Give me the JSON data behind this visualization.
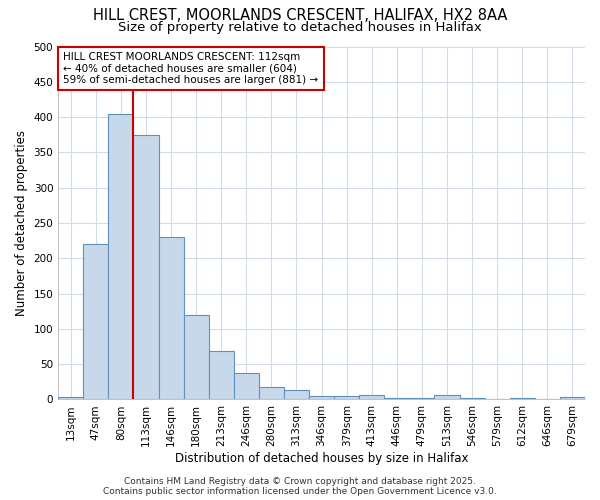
{
  "title_line1": "HILL CREST, MOORLANDS CRESCENT, HALIFAX, HX2 8AA",
  "title_line2": "Size of property relative to detached houses in Halifax",
  "xlabel": "Distribution of detached houses by size in Halifax",
  "ylabel": "Number of detached properties",
  "categories": [
    "13sqm",
    "47sqm",
    "80sqm",
    "113sqm",
    "146sqm",
    "180sqm",
    "213sqm",
    "246sqm",
    "280sqm",
    "313sqm",
    "346sqm",
    "379sqm",
    "413sqm",
    "446sqm",
    "479sqm",
    "513sqm",
    "546sqm",
    "579sqm",
    "612sqm",
    "646sqm",
    "679sqm"
  ],
  "values": [
    3,
    220,
    405,
    375,
    230,
    120,
    68,
    38,
    18,
    14,
    5,
    5,
    6,
    2,
    2,
    7,
    2,
    1,
    2,
    1,
    3
  ],
  "bar_color": "#c8d8eb",
  "bar_edge_color": "#6090c0",
  "bar_edge_width": 0.8,
  "vline_x_index": 2.5,
  "vline_color": "#cc0000",
  "annotation_text": "HILL CREST MOORLANDS CRESCENT: 112sqm\n← 40% of detached houses are smaller (604)\n59% of semi-detached houses are larger (881) →",
  "annotation_box_color": "#ffffff",
  "annotation_box_edge": "#cc0000",
  "footer_text": "Contains HM Land Registry data © Crown copyright and database right 2025.\nContains public sector information licensed under the Open Government Licence v3.0.",
  "ylim": [
    0,
    500
  ],
  "yticks": [
    0,
    50,
    100,
    150,
    200,
    250,
    300,
    350,
    400,
    450,
    500
  ],
  "background_color": "#ffffff",
  "grid_color": "#d0dce8",
  "title_fontsize": 10.5,
  "subtitle_fontsize": 9.5,
  "axis_label_fontsize": 8.5,
  "tick_fontsize": 7.5,
  "annotation_fontsize": 7.5,
  "footer_fontsize": 6.5
}
